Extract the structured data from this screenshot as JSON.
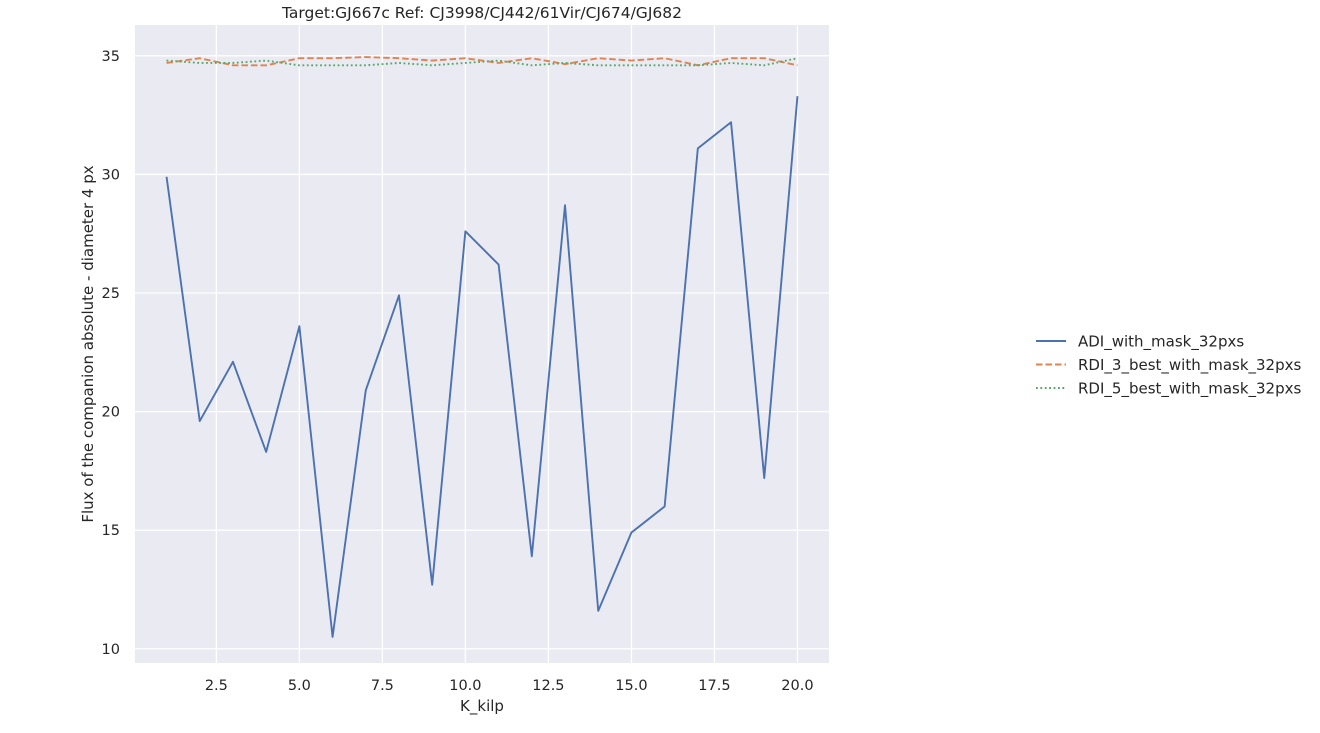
{
  "chart_data": {
    "type": "line",
    "title": "Target:GJ667c Ref: CJ3998/CJ442/61Vir/CJ674/GJ682",
    "xlabel": "K_kilp",
    "ylabel": "Flux of the companion absolute - diameter 4 px",
    "xlim": [
      0.05,
      20.95
    ],
    "ylim": [
      9.4,
      36.3
    ],
    "xticks": [
      2.5,
      5.0,
      7.5,
      10.0,
      12.5,
      15.0,
      17.5,
      20.0
    ],
    "xtick_labels": [
      "2.5",
      "5.0",
      "7.5",
      "10.0",
      "12.5",
      "15.0",
      "17.5",
      "20.0"
    ],
    "yticks": [
      10,
      15,
      20,
      25,
      30,
      35
    ],
    "ytick_labels": [
      "10",
      "15",
      "20",
      "25",
      "30",
      "35"
    ],
    "grid": true,
    "legend_position": "right, outside plot",
    "x": [
      1,
      2,
      3,
      4,
      5,
      6,
      7,
      8,
      9,
      10,
      11,
      12,
      13,
      14,
      15,
      16,
      17,
      18,
      19,
      20
    ],
    "series": [
      {
        "name": "ADI_with_mask_32pxs",
        "color": "#4c72b0",
        "dash": "solid",
        "values": [
          29.9,
          19.6,
          22.1,
          18.3,
          23.6,
          10.5,
          20.9,
          24.9,
          12.7,
          27.6,
          26.2,
          13.9,
          28.7,
          11.6,
          14.9,
          16.0,
          31.1,
          32.2,
          17.2,
          33.3
        ]
      },
      {
        "name": "RDI_3_best_with_mask_32pxs",
        "color": "#dd8452",
        "dash": "dashed",
        "values": [
          34.7,
          34.9,
          34.6,
          34.6,
          34.9,
          34.9,
          34.95,
          34.9,
          34.8,
          34.9,
          34.7,
          34.9,
          34.65,
          34.9,
          34.8,
          34.9,
          34.6,
          34.9,
          34.9,
          34.6
        ]
      },
      {
        "name": "RDI_5_best_with_mask_32pxs",
        "color": "#55a868",
        "dash": "dotted",
        "values": [
          34.8,
          34.7,
          34.7,
          34.8,
          34.6,
          34.6,
          34.6,
          34.7,
          34.6,
          34.7,
          34.8,
          34.6,
          34.7,
          34.6,
          34.6,
          34.6,
          34.6,
          34.7,
          34.6,
          34.9
        ]
      }
    ]
  }
}
